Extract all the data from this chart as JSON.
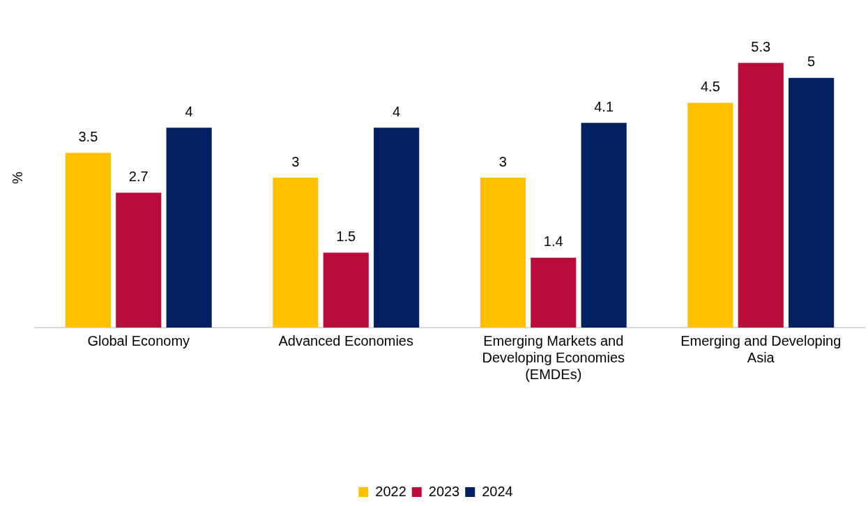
{
  "chart_data": {
    "type": "bar",
    "ylabel": "%",
    "categories": [
      "Global Economy",
      "Advanced Economies",
      "Emerging Markets and Developing Economies (EMDEs)",
      "Emerging and Developing Asia"
    ],
    "series": [
      {
        "name": "2022",
        "color": "#ffc000",
        "values": [
          3.5,
          3,
          3,
          4.5
        ]
      },
      {
        "name": "2023",
        "color": "#ba0c3a",
        "values": [
          2.7,
          1.5,
          1.4,
          5.3
        ]
      },
      {
        "name": "2024",
        "color": "#002060",
        "values": [
          4,
          4,
          4.1,
          5
        ]
      }
    ],
    "data_labels": true,
    "legend": "bottom",
    "grid": false
  }
}
